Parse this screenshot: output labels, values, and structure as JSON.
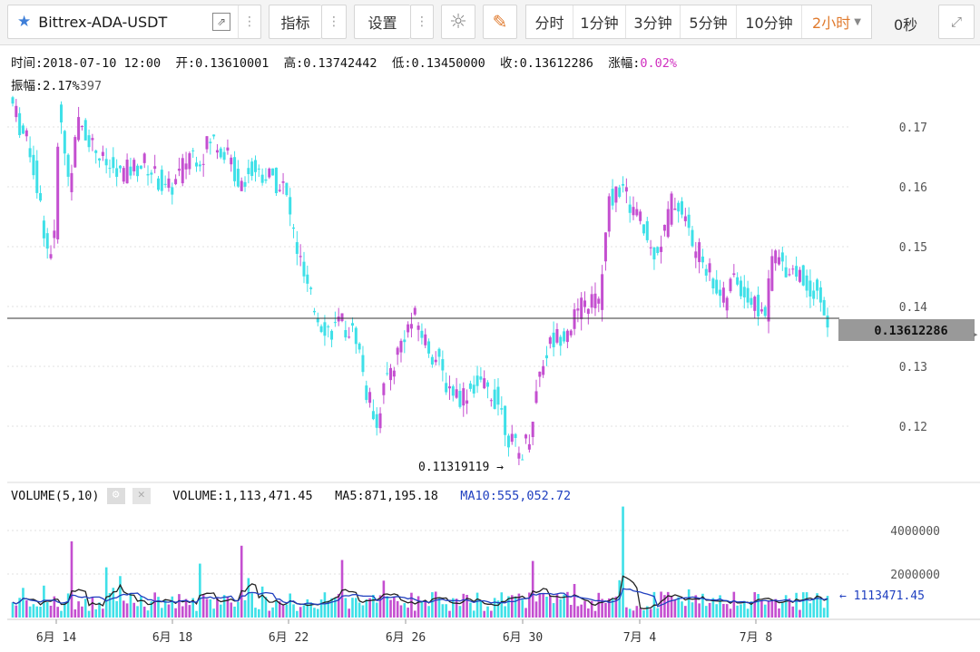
{
  "toolbar": {
    "symbol": "Bittrex-ADA-USDT",
    "indicators_label": "指标",
    "settings_label": "设置",
    "intervals": [
      "分时",
      "1分钟",
      "3分钟",
      "5分钟",
      "10分钟",
      "2小时"
    ],
    "active_interval": "2小时",
    "countdown": "0秒"
  },
  "info": {
    "time_label": "时间:",
    "time": "2018-07-10 12:00",
    "open_label": "开:",
    "open": "0.13610001",
    "high_label": "高:",
    "high": "0.13742442",
    "low_label": "低:",
    "low": "0.13450000",
    "close_label": "收:",
    "close": "0.13612286",
    "change_label": "涨幅:",
    "change": "0.02%",
    "amplitude_label": "振幅:",
    "amplitude": "2.17%",
    "overlap_fragment": "397"
  },
  "price_chart": {
    "y_ticks": [
      "0.17",
      "0.16",
      "0.15",
      "0.14",
      "0.13",
      "0.12"
    ],
    "current_price": "0.13612286",
    "min_marker": "0.11319119 →",
    "colors": {
      "up": "#c44fd0",
      "down": "#3ee0e8",
      "marker_bg": "#999999"
    }
  },
  "volume_panel": {
    "title": "VOLUME(5,10)",
    "volume_label": "VOLUME:",
    "volume": "1,113,471.45",
    "ma5_label": "MA5:",
    "ma5": "871,195.18",
    "ma10_label": "MA10:",
    "ma10": "555,052.72",
    "y_ticks": [
      "4000000",
      "2000000"
    ],
    "last_marker": "← 1113471.45"
  },
  "x_axis": {
    "labels": [
      "6月 14",
      "6月 18",
      "6月 22",
      "6月 26",
      "6月 30",
      "7月 4",
      "7月 8"
    ]
  }
}
